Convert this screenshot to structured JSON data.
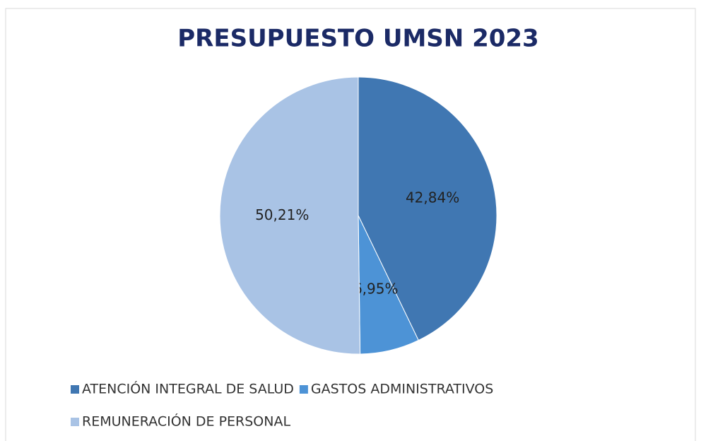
{
  "chart_data": {
    "type": "pie",
    "title": "PRESUPUESTO UMSN 2023",
    "categories": [
      "ATENCIÓN INTEGRAL DE SALUD",
      "GASTOS ADMINISTRATIVOS",
      "REMUNERACIÓN DE PERSONAL"
    ],
    "values": [
      42.84,
      6.95,
      50.21
    ],
    "value_labels": [
      "42,84%",
      "6,95%",
      "50,21%"
    ],
    "colors": [
      "#4077b2",
      "#4d93d6",
      "#a9c3e5"
    ],
    "legend": "bottom"
  }
}
